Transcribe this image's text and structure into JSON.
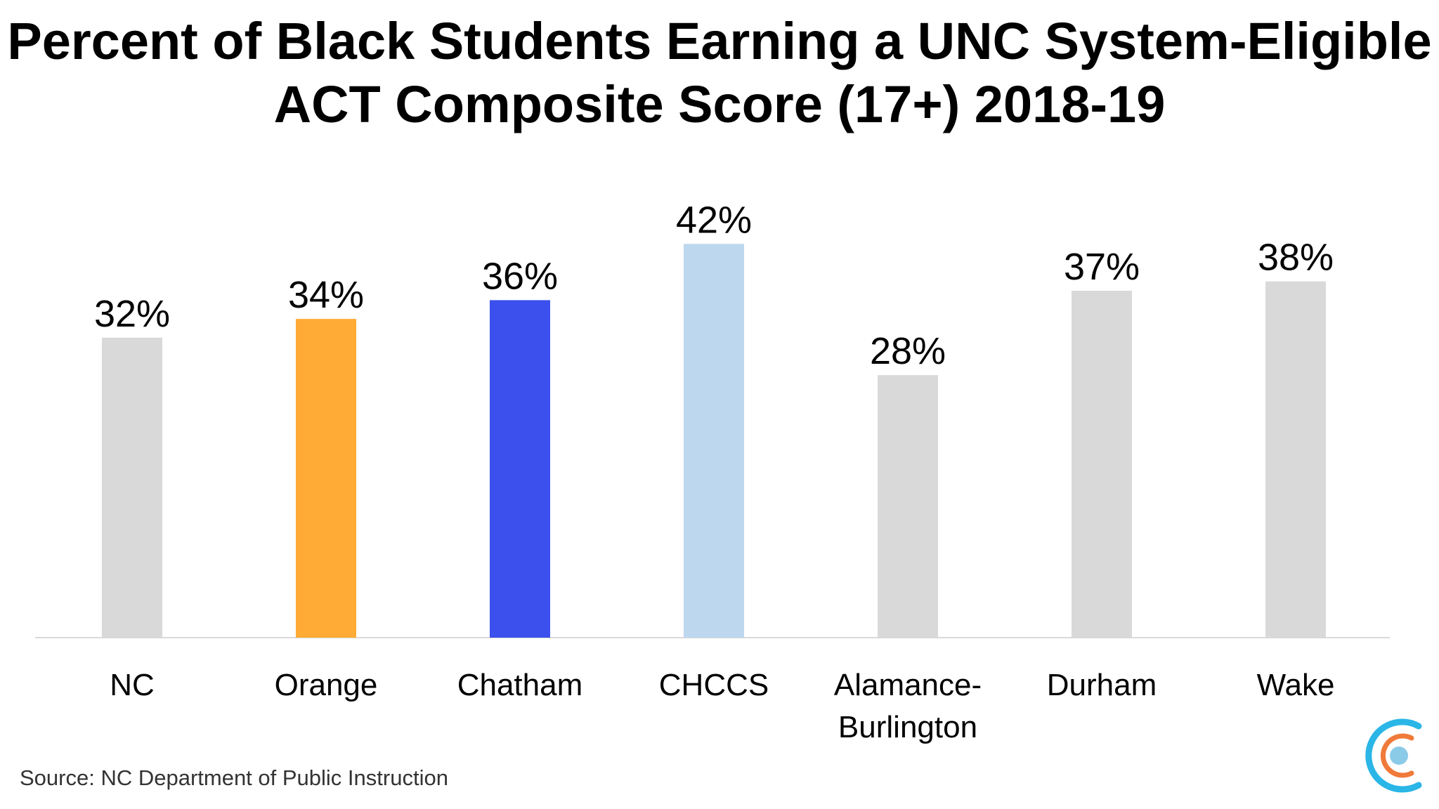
{
  "title_line1": "Percent of Black Students Earning a UNC System-Eligible",
  "title_line2": "ACT Composite Score (17+) 2018-19",
  "source": "Source: NC Department of Public Instruction",
  "chart_data": {
    "type": "bar",
    "title": "Percent of Black Students Earning a UNC System-Eligible ACT Composite Score (17+) 2018-19",
    "categories": [
      "NC",
      "Orange",
      "Chatham",
      "CHCCS",
      "Alamance-Burlington",
      "Durham",
      "Wake"
    ],
    "category_lines": [
      [
        "NC"
      ],
      [
        "Orange"
      ],
      [
        "Chatham"
      ],
      [
        "CHCCS"
      ],
      [
        "Alamance-",
        "Burlington"
      ],
      [
        "Durham"
      ],
      [
        "Wake"
      ]
    ],
    "values": [
      32,
      34,
      36,
      42,
      28,
      37,
      38
    ],
    "value_labels": [
      "32%",
      "34%",
      "36%",
      "42%",
      "28%",
      "37%",
      "38%"
    ],
    "colors": [
      "#d9d9d9",
      "#ffab36",
      "#3b50ec",
      "#bdd7ee",
      "#d9d9d9",
      "#d9d9d9",
      "#d9d9d9"
    ],
    "ylim": [
      0,
      42
    ],
    "grid": false,
    "legend": "none",
    "xlabel": "",
    "ylabel": ""
  },
  "logo_colors": {
    "outer": "#2ab6e6",
    "middle": "#f07a3a",
    "inner": "#8ccbe8"
  }
}
